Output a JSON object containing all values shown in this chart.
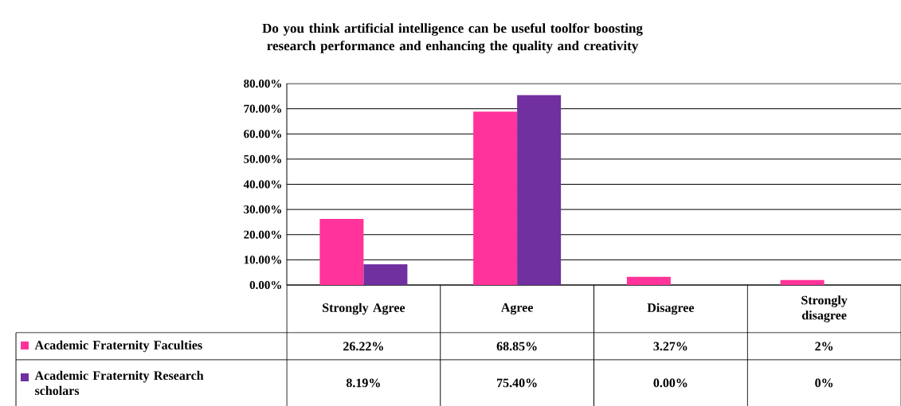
{
  "chart_data": {
    "type": "bar",
    "title": "Do you think artificial intelligence can be useful toolfor boosting research performance and enhancing the quality and creativity",
    "categories": [
      "Strongly Agree",
      "Agree",
      "Disagree",
      "Strongly disagree"
    ],
    "series": [
      {
        "name": "Academic Fraternity Faculties",
        "color": "#ff3399",
        "values": [
          26.22,
          68.85,
          3.27,
          2
        ],
        "value_labels": [
          "26.22%",
          "68.85%",
          "3.27%",
          "2%"
        ]
      },
      {
        "name": "Academic Fraternity Research scholars",
        "color": "#7030a0",
        "values": [
          8.19,
          75.4,
          0,
          0
        ],
        "value_labels": [
          "8.19%",
          "75.40%",
          "0.00%",
          "0%"
        ]
      }
    ],
    "ylim": [
      0,
      80
    ],
    "yticks": [
      {
        "value": 0,
        "label": "0.00%"
      },
      {
        "value": 10,
        "label": "10.00%"
      },
      {
        "value": 20,
        "label": "20.00%"
      },
      {
        "value": 30,
        "label": "30.00%"
      },
      {
        "value": 40,
        "label": "40.00%"
      },
      {
        "value": 50,
        "label": "50.00%"
      },
      {
        "value": 60,
        "label": "60.00%"
      },
      {
        "value": 70,
        "label": "70.00%"
      },
      {
        "value": 80,
        "label": "80.00%"
      }
    ],
    "grid": "y",
    "legend": "bottom"
  }
}
